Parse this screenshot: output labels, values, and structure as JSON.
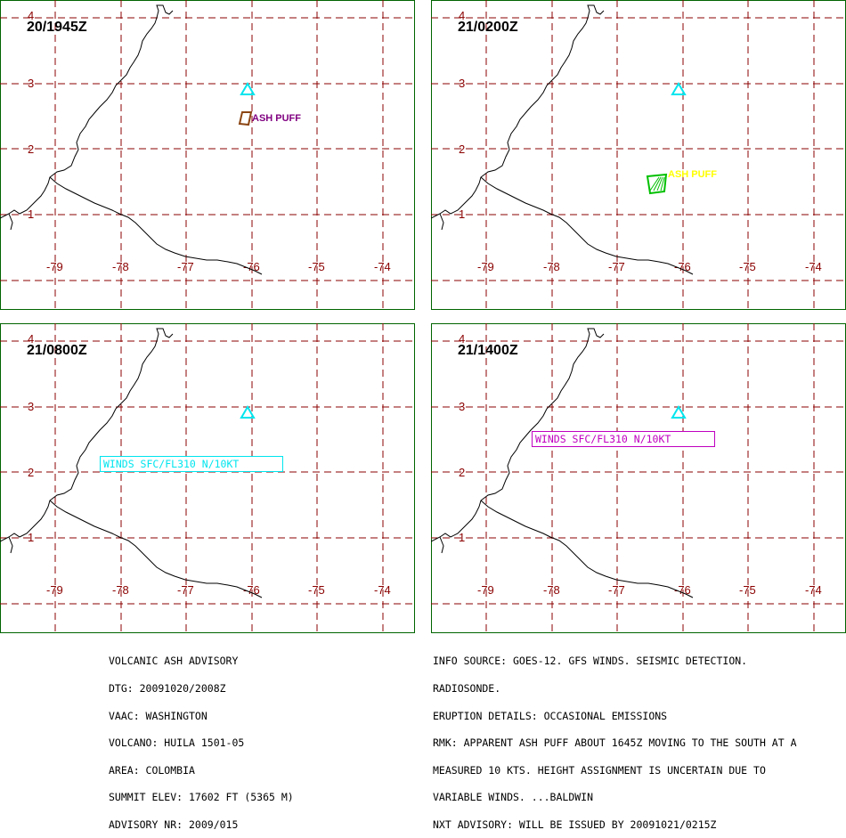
{
  "map": {
    "lat_ticks": [
      "1",
      "2",
      "3",
      "4"
    ],
    "lon_ticks": [
      "-79",
      "-78",
      "-77",
      "-76",
      "-75",
      "-74"
    ],
    "colors": {
      "grid": "#8b0000",
      "coast": "#000000",
      "border": "#006400",
      "volcano": "#00e5ee"
    },
    "volcano_symbol": "cyan-triangle",
    "panels": [
      {
        "time": "20/1945Z",
        "annotation": {
          "kind": "ash",
          "label": "ASH PUFF",
          "color": "#800080",
          "polygon_color": "#8b4513"
        }
      },
      {
        "time": "21/0200Z",
        "annotation": {
          "kind": "ash",
          "label": "ASH PUFF",
          "color": "#ffff00",
          "polygon_color": "#00c000"
        }
      },
      {
        "time": "21/0800Z",
        "annotation": {
          "kind": "winds",
          "label": "WINDS SFC/FL310 N/10KT",
          "color": "#00e5ee"
        }
      },
      {
        "time": "21/1400Z",
        "annotation": {
          "kind": "winds",
          "label": "WINDS SFC/FL310 N/10KT",
          "color": "#c000c0"
        }
      }
    ]
  },
  "advisory": {
    "left_lines": [
      "VOLCANIC ASH ADVISORY",
      "DTG: 20091020/2008Z",
      "VAAC: WASHINGTON",
      "VOLCANO: HUILA 1501-05",
      "AREA: COLOMBIA",
      "SUMMIT ELEV: 17602 FT (5365 M)",
      "ADVISORY NR: 2009/015"
    ],
    "right_lines": [
      "INFO SOURCE: GOES-12. GFS WINDS. SEISMIC DETECTION.",
      "RADIOSONDE.",
      "ERUPTION DETAILS: OCCASIONAL EMISSIONS",
      "RMK: APPARENT ASH PUFF ABOUT 1645Z MOVING TO THE SOUTH AT A",
      "MEASURED 10 KTS. HEIGHT ASSIGNMENT IS UNCERTAIN DUE TO",
      "VARIABLE WINDS. ...BALDWIN",
      "NXT ADVISORY: WILL BE ISSUED BY 20091021/0215Z"
    ]
  }
}
